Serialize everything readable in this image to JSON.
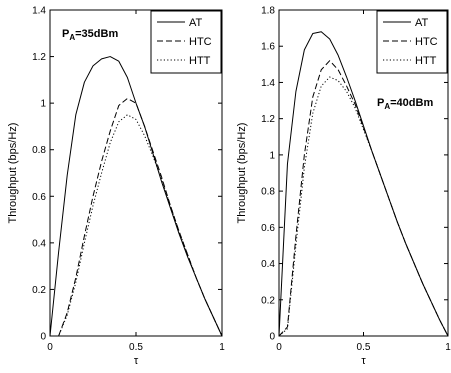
{
  "chart_data": [
    {
      "type": "line",
      "xlabel": "τ",
      "ylabel": "Throughput (bps/Hz)",
      "xlim": [
        0,
        1
      ],
      "ylim": [
        0,
        1.4
      ],
      "xticks": [
        "0",
        "0.5",
        "1"
      ],
      "yticks": [
        "0",
        "0.2",
        "0.4",
        "0.6",
        "0.8",
        "1",
        "1.2",
        "1.4"
      ],
      "annotation": {
        "main": "P",
        "sub": "A",
        "rest": "=35dBm"
      },
      "legend_position": "top-right",
      "grid": false,
      "x": [
        0,
        0.05,
        0.1,
        0.15,
        0.2,
        0.25,
        0.3,
        0.35,
        0.4,
        0.45,
        0.5,
        0.55,
        0.6,
        0.65,
        0.7,
        0.75,
        0.8,
        0.85,
        0.9,
        0.95,
        1.0
      ],
      "series": [
        {
          "name": "AT",
          "style": "solid",
          "values": [
            0,
            0.36,
            0.69,
            0.95,
            1.09,
            1.16,
            1.19,
            1.2,
            1.18,
            1.11,
            1.0,
            0.9,
            0.78,
            0.66,
            0.55,
            0.44,
            0.34,
            0.25,
            0.16,
            0.08,
            0
          ]
        },
        {
          "name": "HTC",
          "style": "dashed",
          "values": [
            0,
            0.0,
            0.1,
            0.25,
            0.43,
            0.6,
            0.75,
            0.88,
            0.99,
            1.02,
            1.0,
            0.9,
            0.79,
            0.68,
            0.56,
            0.45,
            0.35,
            0.25,
            0.16,
            0.08,
            0
          ]
        },
        {
          "name": "HTT",
          "style": "dotted",
          "values": [
            0,
            0.0,
            0.09,
            0.23,
            0.4,
            0.56,
            0.7,
            0.83,
            0.92,
            0.95,
            0.93,
            0.86,
            0.77,
            0.67,
            0.56,
            0.45,
            0.35,
            0.25,
            0.16,
            0.08,
            0
          ]
        }
      ]
    },
    {
      "type": "line",
      "xlabel": "τ",
      "ylabel": "Throughput (bps/Hz)",
      "xlim": [
        0,
        1
      ],
      "ylim": [
        0,
        1.8
      ],
      "xticks": [
        "0",
        "0.5",
        "1"
      ],
      "yticks": [
        "0",
        "0.2",
        "0.4",
        "0.6",
        "0.8",
        "1",
        "1.2",
        "1.4",
        "1.6",
        "1.8"
      ],
      "annotation": {
        "main": "P",
        "sub": "A",
        "rest": "=40dBm"
      },
      "legend_position": "top-right",
      "grid": false,
      "x": [
        0,
        0.05,
        0.1,
        0.15,
        0.2,
        0.25,
        0.3,
        0.35,
        0.4,
        0.45,
        0.5,
        0.55,
        0.6,
        0.65,
        0.7,
        0.75,
        0.8,
        0.85,
        0.9,
        0.95,
        1.0
      ],
      "series": [
        {
          "name": "AT",
          "style": "solid",
          "values": [
            0,
            0.95,
            1.35,
            1.58,
            1.67,
            1.68,
            1.64,
            1.55,
            1.43,
            1.3,
            1.16,
            1.02,
            0.89,
            0.76,
            0.63,
            0.51,
            0.4,
            0.29,
            0.19,
            0.09,
            0
          ]
        },
        {
          "name": "HTC",
          "style": "dashed",
          "values": [
            0,
            0.05,
            0.55,
            1.0,
            1.32,
            1.47,
            1.52,
            1.47,
            1.38,
            1.28,
            1.15,
            1.02,
            0.89,
            0.76,
            0.63,
            0.51,
            0.4,
            0.29,
            0.19,
            0.09,
            0
          ]
        },
        {
          "name": "HTT",
          "style": "dotted",
          "values": [
            0,
            0.04,
            0.5,
            0.93,
            1.23,
            1.38,
            1.43,
            1.41,
            1.35,
            1.26,
            1.14,
            1.02,
            0.89,
            0.76,
            0.63,
            0.51,
            0.4,
            0.29,
            0.19,
            0.09,
            0
          ]
        }
      ]
    }
  ]
}
